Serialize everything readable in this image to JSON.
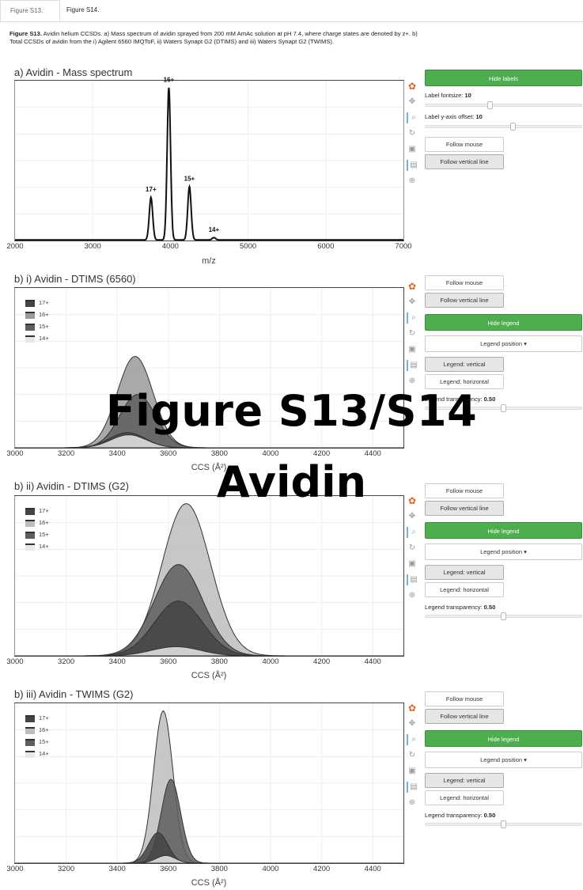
{
  "tabs": [
    {
      "label": "Figure S13."
    },
    {
      "label": "Figure S14."
    }
  ],
  "caption": {
    "bold": "Figure S13.",
    "text": " Avidin helium CCSDs. a) Mass spectrum of avidin sprayed from 200 mM AmAc solution at pH 7.4, where charge states are denoted by z+. b) Total CCSDs of avidin from the i) Agilent 6560 IMQToF, ii) Waters Synapt G2 (DTIMS) and iii) Waters Synapt G2 (TWIMS)."
  },
  "overlay": {
    "line1": "Figure S13/S14",
    "line2": "Avidin"
  },
  "toolbar_icons": [
    "color-wheel-icon",
    "pan-icon",
    "zoom-icon",
    "reset-icon",
    "save-icon",
    "hover-icon",
    "crosshair-icon"
  ],
  "plots": [
    {
      "title": "a) Avidin - Mass spectrum",
      "xlabel": "m/z",
      "panel": {
        "toggle_label": "Hide labels",
        "fontsize_label": "Label fontsize:",
        "fontsize_value": "10",
        "fontsize_level": 0.41,
        "offset_label": "Label y-axis offset:",
        "offset_value": "10",
        "offset_level": 0.56,
        "follow_mouse": "Follow mouse",
        "follow_vertical": "Follow vertical line"
      }
    },
    {
      "title": "b) i) Avidin - DTIMS (6560)",
      "xlabel": "CCS (Å²)",
      "panel": {
        "follow_mouse": "Follow mouse",
        "follow_vertical": "Follow vertical line",
        "toggle_label": "Hide legend",
        "position_label": "Legend position",
        "vertical": "Legend: vertical",
        "horizontal": "Legend: horizontal",
        "transparency_label": "Legend transparency:",
        "transparency_value": "0.50",
        "transparency_level": 0.5
      }
    },
    {
      "title": "b) ii) Avidin - DTIMS (G2)",
      "xlabel": "CCS (Å²)",
      "panel": {
        "follow_mouse": "Follow mouse",
        "follow_vertical": "Follow vertical line",
        "toggle_label": "Hide legend",
        "position_label": "Legend position",
        "vertical": "Legend: vertical",
        "horizontal": "Legend: horizontal",
        "transparency_label": "Legend transparency:",
        "transparency_value": "0.50",
        "transparency_level": 0.5
      }
    },
    {
      "title": "b) iii) Avidin - TWIMS (G2)",
      "xlabel": "CCS (Å²)",
      "panel": {
        "follow_mouse": "Follow mouse",
        "follow_vertical": "Follow vertical line",
        "toggle_label": "Hide legend",
        "position_label": "Legend position",
        "vertical": "Legend: vertical",
        "horizontal": "Legend: horizontal",
        "transparency_label": "Legend transparency:",
        "transparency_value": "0.50",
        "transparency_level": 0.5
      }
    }
  ],
  "chart_data": [
    {
      "type": "line",
      "title": "a) Avidin - Mass spectrum",
      "xlabel": "m/z",
      "ylabel": "",
      "xlim": [
        2000,
        7000
      ],
      "ylim": [
        0,
        1.05
      ],
      "xticks": [
        "2000",
        "3000",
        "4000",
        "5000",
        "6000",
        "7000"
      ],
      "grid": true,
      "peaks": [
        {
          "label": "17+",
          "x": 3750,
          "y": 0.28
        },
        {
          "label": "16+",
          "x": 3980,
          "y": 1.0
        },
        {
          "label": "15+",
          "x": 4245,
          "y": 0.35
        },
        {
          "label": "14+",
          "x": 4560,
          "y": 0.015
        }
      ]
    },
    {
      "type": "area",
      "title": "b) i) Avidin - DTIMS (6560)",
      "xlabel": "CCS (Å²)",
      "xlim": [
        3000,
        4520
      ],
      "ylim": [
        0,
        1.05
      ],
      "xticks": [
        "3000",
        "3200",
        "3400",
        "3600",
        "3800",
        "4000",
        "4200",
        "4400"
      ],
      "legend_position": "top-left",
      "series": [
        {
          "name": "17+",
          "center": 3440,
          "height": 0.1,
          "fill": "#444444"
        },
        {
          "name": "16+",
          "center": 3470,
          "height": 0.6,
          "fill": "#9a9a9a"
        },
        {
          "name": "15+",
          "center": 3480,
          "height": 0.35,
          "fill": "#5e5e5e"
        },
        {
          "name": "14+",
          "center": 3445,
          "height": 0.085,
          "fill": "#e8e8e8"
        }
      ]
    },
    {
      "type": "area",
      "title": "b) ii) Avidin - DTIMS (G2)",
      "xlabel": "CCS (Å²)",
      "xlim": [
        3000,
        4520
      ],
      "ylim": [
        0,
        1.05
      ],
      "xticks": [
        "3000",
        "3200",
        "3400",
        "3600",
        "3800",
        "4000",
        "4200",
        "4400"
      ],
      "legend_position": "top-left",
      "series": [
        {
          "name": "17+",
          "center": 3640,
          "height": 0.36,
          "fill": "#444444"
        },
        {
          "name": "16+",
          "center": 3670,
          "height": 1.0,
          "fill": "#bdbdbd"
        },
        {
          "name": "15+",
          "center": 3640,
          "height": 0.6,
          "fill": "#5e5e5e"
        },
        {
          "name": "14+",
          "center": 3630,
          "height": 0.06,
          "fill": "#e8e8e8"
        }
      ]
    },
    {
      "type": "area",
      "title": "b) iii) Avidin - TWIMS (G2)",
      "xlabel": "CCS (Å²)",
      "xlim": [
        3000,
        4520
      ],
      "ylim": [
        0,
        1.05
      ],
      "xticks": [
        "3000",
        "3200",
        "3400",
        "3600",
        "3800",
        "4000",
        "4200",
        "4400"
      ],
      "legend_position": "top-left",
      "series": [
        {
          "name": "17+",
          "center": 3560,
          "height": 0.2,
          "fill": "#444444"
        },
        {
          "name": "16+",
          "center": 3580,
          "height": 1.0,
          "fill": "#bdbdbd"
        },
        {
          "name": "15+",
          "center": 3610,
          "height": 0.55,
          "fill": "#5e5e5e"
        },
        {
          "name": "14+",
          "center": 3590,
          "height": 0.05,
          "fill": "#e8e8e8"
        }
      ]
    }
  ]
}
